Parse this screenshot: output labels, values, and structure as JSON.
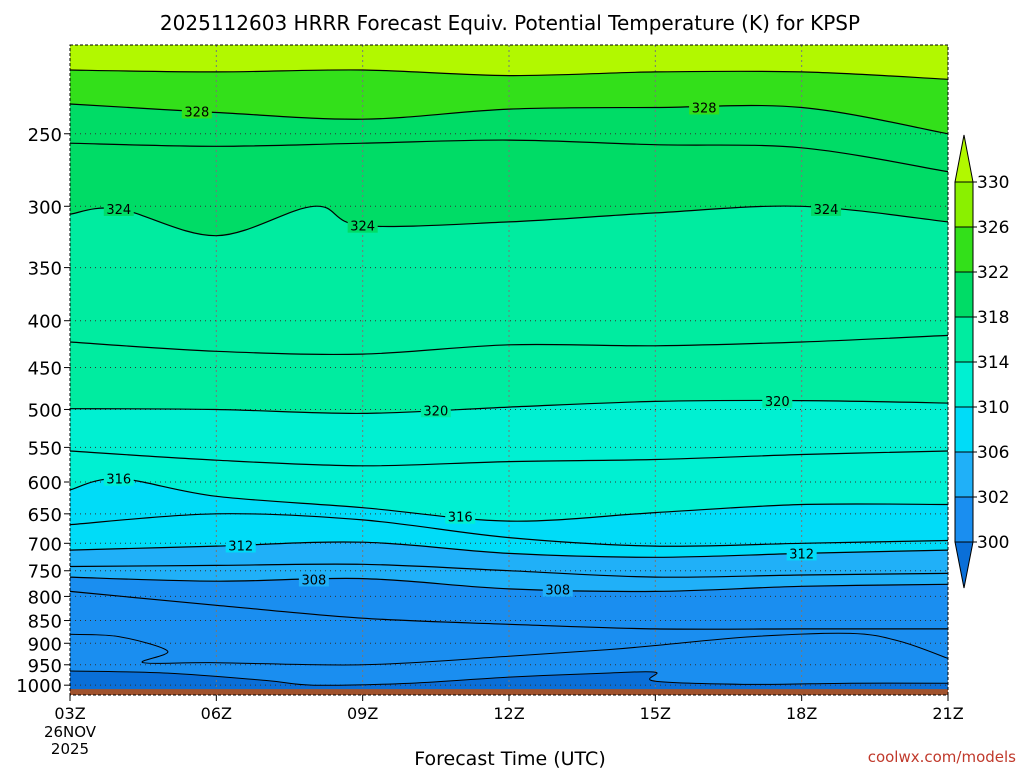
{
  "chart_data": {
    "type": "contour",
    "title": "2025112603 HRRR Forecast Equiv. Potential Temperature (K) for KPSP",
    "xlabel": "Forecast Time (UTC)",
    "x_ticks": [
      "03Z",
      "06Z",
      "09Z",
      "12Z",
      "15Z",
      "18Z",
      "21Z"
    ],
    "x_hours": [
      0,
      3,
      6,
      9,
      12,
      15,
      18
    ],
    "x_start_date": [
      "26NOV",
      "2025"
    ],
    "pressure_levels": [
      250,
      300,
      350,
      400,
      450,
      500,
      550,
      600,
      650,
      700,
      750,
      800,
      850,
      900,
      950,
      1000
    ],
    "y_tick_labels": [
      "250",
      "300",
      "350",
      "400",
      "450",
      "500",
      "550",
      "600",
      "650",
      "700",
      "750",
      "800",
      "850",
      "900",
      "950",
      "1000"
    ],
    "ylim_hpa": [
      200,
      1025
    ],
    "grid": true,
    "colorbar": {
      "levels": [
        300,
        302,
        306,
        310,
        314,
        318,
        322,
        326,
        330
      ],
      "labels": [
        "330",
        "326",
        "322",
        "318",
        "314",
        "310",
        "306",
        "302",
        "300"
      ],
      "colors": [
        "#0a6fd8",
        "#1a8ef0",
        "#20b0f8",
        "#00dcf8",
        "#00f0d2",
        "#00eca0",
        "#00dc66",
        "#33e01a",
        "#8af000",
        "#b2f800"
      ]
    },
    "isentropes": [
      {
        "theta": 330,
        "pressure_hpa": [
          [
            0,
            213
          ],
          [
            3,
            214
          ],
          [
            6,
            213
          ],
          [
            9,
            216
          ],
          [
            12,
            214
          ],
          [
            15,
            214
          ],
          [
            18,
            218
          ]
        ]
      },
      {
        "theta": 328,
        "pressure_hpa": [
          [
            0,
            232
          ],
          [
            3,
            237
          ],
          [
            6,
            241
          ],
          [
            9,
            235
          ],
          [
            12,
            234
          ],
          [
            15,
            234
          ],
          [
            18,
            250
          ]
        ],
        "label": "328"
      },
      {
        "theta": 326,
        "pressure_hpa": [
          [
            0,
            256
          ],
          [
            3,
            258
          ],
          [
            6,
            256
          ],
          [
            9,
            254
          ],
          [
            12,
            257
          ],
          [
            15,
            259
          ],
          [
            18,
            275
          ]
        ]
      },
      {
        "theta": 324,
        "pressure_hpa": [
          [
            0,
            306
          ],
          [
            1,
            302
          ],
          [
            3,
            323
          ],
          [
            5,
            300
          ],
          [
            6,
            315
          ],
          [
            9,
            312
          ],
          [
            12,
            305
          ],
          [
            15,
            300
          ],
          [
            18,
            312
          ]
        ],
        "label": "324"
      },
      {
        "theta": 322,
        "pressure_hpa": [
          [
            0,
            422
          ],
          [
            3,
            432
          ],
          [
            6,
            435
          ],
          [
            9,
            425
          ],
          [
            12,
            426
          ],
          [
            15,
            422
          ],
          [
            18,
            415
          ]
        ]
      },
      {
        "theta": 320,
        "pressure_hpa": [
          [
            0,
            499
          ],
          [
            3,
            500
          ],
          [
            6,
            505
          ],
          [
            9,
            497
          ],
          [
            12,
            490
          ],
          [
            15,
            489
          ],
          [
            18,
            492
          ]
        ],
        "label": "320"
      },
      {
        "theta": 318,
        "pressure_hpa": [
          [
            0,
            555
          ],
          [
            3,
            568
          ],
          [
            6,
            576
          ],
          [
            9,
            570
          ],
          [
            12,
            567
          ],
          [
            15,
            560
          ],
          [
            18,
            555
          ]
        ]
      },
      {
        "theta": 316,
        "pressure_hpa": [
          [
            0,
            612
          ],
          [
            1,
            595
          ],
          [
            3,
            622
          ],
          [
            6,
            640
          ],
          [
            9,
            662
          ],
          [
            12,
            648
          ],
          [
            15,
            635
          ],
          [
            18,
            635
          ]
        ],
        "label": "316"
      },
      {
        "theta": 314,
        "pressure_hpa": [
          [
            0,
            668
          ],
          [
            3,
            650
          ],
          [
            6,
            660
          ],
          [
            9,
            690
          ],
          [
            12,
            705
          ],
          [
            15,
            700
          ],
          [
            18,
            695
          ]
        ]
      },
      {
        "theta": 312,
        "pressure_hpa": [
          [
            0,
            712
          ],
          [
            3,
            705
          ],
          [
            6,
            698
          ],
          [
            9,
            718
          ],
          [
            12,
            725
          ],
          [
            15,
            718
          ],
          [
            18,
            712
          ]
        ],
        "label": "312"
      },
      {
        "theta": 310,
        "pressure_hpa": [
          [
            0,
            742
          ],
          [
            3,
            740
          ],
          [
            6,
            738
          ],
          [
            9,
            750
          ],
          [
            12,
            762
          ],
          [
            15,
            758
          ],
          [
            18,
            755
          ]
        ]
      },
      {
        "theta": 308,
        "pressure_hpa": [
          [
            0,
            762
          ],
          [
            3,
            770
          ],
          [
            6,
            765
          ],
          [
            9,
            785
          ],
          [
            12,
            790
          ],
          [
            15,
            780
          ],
          [
            18,
            776
          ]
        ],
        "label": "308"
      },
      {
        "theta": 306,
        "pressure_hpa": [
          [
            0,
            790
          ],
          [
            3,
            818
          ],
          [
            6,
            845
          ],
          [
            9,
            858
          ],
          [
            12,
            868
          ],
          [
            15,
            868
          ],
          [
            18,
            868
          ]
        ]
      }
    ],
    "terrain": {
      "pressure_hpa_top": 1010,
      "color": "#a0522d"
    }
  },
  "credit": "coolwx.com/models"
}
